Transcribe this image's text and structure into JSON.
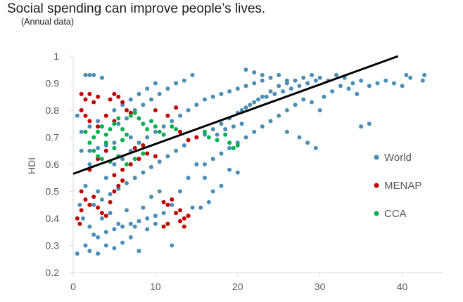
{
  "title": "Social spending can improve people’s lives.",
  "subtitle": "(Annual data)",
  "chart_data": {
    "type": "scatter",
    "title": "Social spending can improve people’s lives.",
    "subtitle": "(Annual data)",
    "xlabel": "",
    "ylabel": "HDI",
    "xlim": [
      0,
      45
    ],
    "ylim": [
      0.2,
      1.0
    ],
    "x_ticks": [
      "0",
      "10",
      "20",
      "30",
      "40"
    ],
    "y_ticks": [
      "0.2",
      "0.3",
      "0.4",
      "0.5",
      "0.6",
      "0.7",
      "0.8",
      "0.9",
      "1"
    ],
    "legend_position": "right",
    "series": [
      {
        "name": "World",
        "color": "#4a8db5",
        "points": [
          [
            0.5,
            0.27
          ],
          [
            1.5,
            0.93
          ],
          [
            2.0,
            0.93
          ],
          [
            2.5,
            0.93
          ],
          [
            3.5,
            0.92
          ],
          [
            1.0,
            0.8
          ],
          [
            0.5,
            0.78
          ],
          [
            1.0,
            0.65
          ],
          [
            2.0,
            0.6
          ],
          [
            1.5,
            0.52
          ],
          [
            0.8,
            0.45
          ],
          [
            1.2,
            0.4
          ],
          [
            2.0,
            0.37
          ],
          [
            2.5,
            0.34
          ],
          [
            3.0,
            0.33
          ],
          [
            1.5,
            0.3
          ],
          [
            2.0,
            0.28
          ],
          [
            3.0,
            0.27
          ],
          [
            4.0,
            0.3
          ],
          [
            5.0,
            0.29
          ],
          [
            6.0,
            0.31
          ],
          [
            7.0,
            0.33
          ],
          [
            8.0,
            0.28
          ],
          [
            9.0,
            0.36
          ],
          [
            10.0,
            0.38
          ],
          [
            3.5,
            0.4
          ],
          [
            4.5,
            0.42
          ],
          [
            5.5,
            0.38
          ],
          [
            6.5,
            0.43
          ],
          [
            7.5,
            0.37
          ],
          [
            8.5,
            0.44
          ],
          [
            9.5,
            0.48
          ],
          [
            10.5,
            0.5
          ],
          [
            11.0,
            0.46
          ],
          [
            12.0,
            0.45
          ],
          [
            13.0,
            0.5
          ],
          [
            14.0,
            0.55
          ],
          [
            15.0,
            0.6
          ],
          [
            16.0,
            0.55
          ],
          [
            17.0,
            0.5
          ],
          [
            18.0,
            0.52
          ],
          [
            19.0,
            0.58
          ],
          [
            20.0,
            0.57
          ],
          [
            12.0,
            0.3
          ],
          [
            16.5,
            0.46
          ],
          [
            15.5,
            0.44
          ],
          [
            14.5,
            0.44
          ],
          [
            3.0,
            0.5
          ],
          [
            4.0,
            0.55
          ],
          [
            5.0,
            0.6
          ],
          [
            6.0,
            0.62
          ],
          [
            7.0,
            0.65
          ],
          [
            8.0,
            0.68
          ],
          [
            9.0,
            0.7
          ],
          [
            10.0,
            0.72
          ],
          [
            11.0,
            0.74
          ],
          [
            12.0,
            0.76
          ],
          [
            13.0,
            0.78
          ],
          [
            14.0,
            0.8
          ],
          [
            15.0,
            0.82
          ],
          [
            5.5,
            0.75
          ],
          [
            6.5,
            0.77
          ],
          [
            7.5,
            0.8
          ],
          [
            8.5,
            0.82
          ],
          [
            9.5,
            0.84
          ],
          [
            10.5,
            0.86
          ],
          [
            11.5,
            0.88
          ],
          [
            12.5,
            0.9
          ],
          [
            13.5,
            0.91
          ],
          [
            14.5,
            0.93
          ],
          [
            16.0,
            0.84
          ],
          [
            17.0,
            0.85
          ],
          [
            18.0,
            0.86
          ],
          [
            19.0,
            0.87
          ],
          [
            20.0,
            0.88
          ],
          [
            21.0,
            0.89
          ],
          [
            22.0,
            0.9
          ],
          [
            23.0,
            0.91
          ],
          [
            24.0,
            0.92
          ],
          [
            25.0,
            0.93
          ],
          [
            20.5,
            0.8
          ],
          [
            21.5,
            0.82
          ],
          [
            22.5,
            0.84
          ],
          [
            23.5,
            0.85
          ],
          [
            24.5,
            0.86
          ],
          [
            25.5,
            0.87
          ],
          [
            26.5,
            0.88
          ],
          [
            27.5,
            0.89
          ],
          [
            28.5,
            0.9
          ],
          [
            29.5,
            0.91
          ],
          [
            21.0,
            0.95
          ],
          [
            22.0,
            0.94
          ],
          [
            23.0,
            0.93
          ],
          [
            26.0,
            0.9
          ],
          [
            27.0,
            0.91
          ],
          [
            28.0,
            0.92
          ],
          [
            29.0,
            0.93
          ],
          [
            30.0,
            0.92
          ],
          [
            31.0,
            0.91
          ],
          [
            32.0,
            0.93
          ],
          [
            33.0,
            0.92
          ],
          [
            34.0,
            0.9
          ],
          [
            35.0,
            0.91
          ],
          [
            36.0,
            0.89
          ],
          [
            37.0,
            0.9
          ],
          [
            38.0,
            0.91
          ],
          [
            39.0,
            0.9
          ],
          [
            40.0,
            0.89
          ],
          [
            41.0,
            0.92
          ],
          [
            42.5,
            0.91
          ],
          [
            42.7,
            0.93
          ],
          [
            40.5,
            0.93
          ],
          [
            36.0,
            0.75
          ],
          [
            35.0,
            0.74
          ],
          [
            27.0,
            0.82
          ],
          [
            26.0,
            0.8
          ],
          [
            25.0,
            0.78
          ],
          [
            24.0,
            0.76
          ],
          [
            23.0,
            0.74
          ],
          [
            22.0,
            0.72
          ],
          [
            21.0,
            0.7
          ],
          [
            20.0,
            0.68
          ],
          [
            19.0,
            0.66
          ],
          [
            18.0,
            0.64
          ],
          [
            17.0,
            0.62
          ],
          [
            16.0,
            0.6
          ],
          [
            28.5,
            0.68
          ],
          [
            29.5,
            0.66
          ],
          [
            27.5,
            0.7
          ],
          [
            26.0,
            0.72
          ],
          [
            20.5,
            0.75
          ],
          [
            19.5,
            0.74
          ],
          [
            18.5,
            0.73
          ],
          [
            17.5,
            0.71
          ],
          [
            2.5,
            0.45
          ],
          [
            3.5,
            0.47
          ],
          [
            4.5,
            0.49
          ],
          [
            5.5,
            0.51
          ],
          [
            6.5,
            0.53
          ],
          [
            7.5,
            0.55
          ],
          [
            8.5,
            0.57
          ],
          [
            9.5,
            0.59
          ],
          [
            10.5,
            0.61
          ],
          [
            11.5,
            0.63
          ],
          [
            12.5,
            0.65
          ],
          [
            13.5,
            0.67
          ],
          [
            4.0,
            0.35
          ],
          [
            5.0,
            0.36
          ],
          [
            6.0,
            0.37
          ],
          [
            7.0,
            0.38
          ],
          [
            8.0,
            0.39
          ],
          [
            9.0,
            0.4
          ],
          [
            10.0,
            0.41
          ],
          [
            11.0,
            0.42
          ],
          [
            2.0,
            0.65
          ],
          [
            3.0,
            0.66
          ],
          [
            4.0,
            0.67
          ],
          [
            5.0,
            0.68
          ],
          [
            6.0,
            0.69
          ],
          [
            7.0,
            0.7
          ],
          [
            1.0,
            0.72
          ],
          [
            2.0,
            0.74
          ],
          [
            3.0,
            0.76
          ],
          [
            4.0,
            0.78
          ],
          [
            5.0,
            0.8
          ],
          [
            6.0,
            0.82
          ],
          [
            7.0,
            0.84
          ],
          [
            8.0,
            0.86
          ],
          [
            9.0,
            0.88
          ],
          [
            10.0,
            0.9
          ],
          [
            15.0,
            0.7
          ],
          [
            16.0,
            0.71
          ],
          [
            17.0,
            0.73
          ],
          [
            18.0,
            0.75
          ],
          [
            19.0,
            0.77
          ],
          [
            20.0,
            0.79
          ],
          [
            21.0,
            0.81
          ],
          [
            22.0,
            0.83
          ],
          [
            23.0,
            0.85
          ],
          [
            24.0,
            0.87
          ],
          [
            25.0,
            0.89
          ],
          [
            26.0,
            0.91
          ],
          [
            30.5,
            0.85
          ],
          [
            31.5,
            0.87
          ],
          [
            32.5,
            0.89
          ],
          [
            33.5,
            0.88
          ],
          [
            34.5,
            0.86
          ],
          [
            28.0,
            0.84
          ],
          [
            29.0,
            0.83
          ],
          [
            30.0,
            0.8
          ]
        ]
      },
      {
        "name": "MENAP",
        "color": "#c00000",
        "points": [
          [
            1.0,
            0.86
          ],
          [
            1.5,
            0.84
          ],
          [
            2.0,
            0.86
          ],
          [
            2.5,
            0.83
          ],
          [
            3.0,
            0.85
          ],
          [
            4.5,
            0.84
          ],
          [
            5.0,
            0.86
          ],
          [
            5.5,
            0.85
          ],
          [
            6.0,
            0.83
          ],
          [
            6.5,
            0.8
          ],
          [
            1.0,
            0.8
          ],
          [
            1.5,
            0.78
          ],
          [
            2.0,
            0.76
          ],
          [
            3.0,
            0.74
          ],
          [
            4.0,
            0.78
          ],
          [
            5.0,
            0.76
          ],
          [
            7.0,
            0.79
          ],
          [
            8.0,
            0.77
          ],
          [
            10.0,
            0.8
          ],
          [
            12.5,
            0.81
          ],
          [
            11.5,
            0.78
          ],
          [
            13.0,
            0.72
          ],
          [
            14.0,
            0.69
          ],
          [
            15.0,
            0.7
          ],
          [
            1.0,
            0.5
          ],
          [
            1.5,
            0.47
          ],
          [
            2.0,
            0.45
          ],
          [
            2.5,
            0.48
          ],
          [
            3.0,
            0.44
          ],
          [
            3.5,
            0.42
          ],
          [
            4.0,
            0.41
          ],
          [
            4.5,
            0.46
          ],
          [
            5.0,
            0.5
          ],
          [
            5.5,
            0.52
          ],
          [
            1.0,
            0.43
          ],
          [
            0.5,
            0.4
          ],
          [
            0.8,
            0.38
          ],
          [
            11.0,
            0.37
          ],
          [
            11.5,
            0.38
          ],
          [
            13.0,
            0.39
          ],
          [
            13.5,
            0.4
          ],
          [
            14.0,
            0.41
          ],
          [
            13.0,
            0.43
          ],
          [
            12.5,
            0.42
          ],
          [
            11.0,
            0.46
          ],
          [
            11.5,
            0.45
          ],
          [
            6.0,
            0.58
          ],
          [
            7.0,
            0.6
          ],
          [
            8.0,
            0.62
          ],
          [
            9.0,
            0.64
          ],
          [
            10.0,
            0.63
          ],
          [
            7.5,
            0.66
          ],
          [
            8.5,
            0.67
          ],
          [
            4.0,
            0.65
          ],
          [
            3.0,
            0.62
          ],
          [
            2.0,
            0.58
          ],
          [
            5.0,
            0.56
          ],
          [
            6.0,
            0.54
          ],
          [
            13.5,
            0.37
          ],
          [
            12.0,
            0.47
          ]
        ]
      },
      {
        "name": "CCA",
        "color": "#00b050",
        "points": [
          [
            1.5,
            0.72
          ],
          [
            2.0,
            0.68
          ],
          [
            2.5,
            0.7
          ],
          [
            3.0,
            0.72
          ],
          [
            3.5,
            0.74
          ],
          [
            4.0,
            0.71
          ],
          [
            4.5,
            0.73
          ],
          [
            5.0,
            0.75
          ],
          [
            5.5,
            0.77
          ],
          [
            6.0,
            0.73
          ],
          [
            6.5,
            0.71
          ],
          [
            7.0,
            0.78
          ],
          [
            7.5,
            0.79
          ],
          [
            8.0,
            0.77
          ],
          [
            8.5,
            0.75
          ],
          [
            9.0,
            0.73
          ],
          [
            9.5,
            0.76
          ],
          [
            10.0,
            0.74
          ],
          [
            10.5,
            0.72
          ],
          [
            11.0,
            0.71
          ],
          [
            2.5,
            0.65
          ],
          [
            3.0,
            0.63
          ],
          [
            3.5,
            0.62
          ],
          [
            4.5,
            0.61
          ],
          [
            5.5,
            0.63
          ],
          [
            6.5,
            0.6
          ],
          [
            7.5,
            0.62
          ],
          [
            8.5,
            0.64
          ],
          [
            16.0,
            0.72
          ],
          [
            16.5,
            0.7
          ],
          [
            17.5,
            0.69
          ],
          [
            19.0,
            0.68
          ],
          [
            19.5,
            0.66
          ],
          [
            20.0,
            0.67
          ],
          [
            18.5,
            0.71
          ],
          [
            12.0,
            0.74
          ],
          [
            12.5,
            0.73
          ],
          [
            5.0,
            0.66
          ],
          [
            4.0,
            0.68
          ],
          [
            6.0,
            0.69
          ]
        ]
      }
    ],
    "trendline": {
      "color": "#000000",
      "points": [
        [
          0,
          0.565
        ],
        [
          39.5,
          1.0
        ]
      ]
    }
  }
}
